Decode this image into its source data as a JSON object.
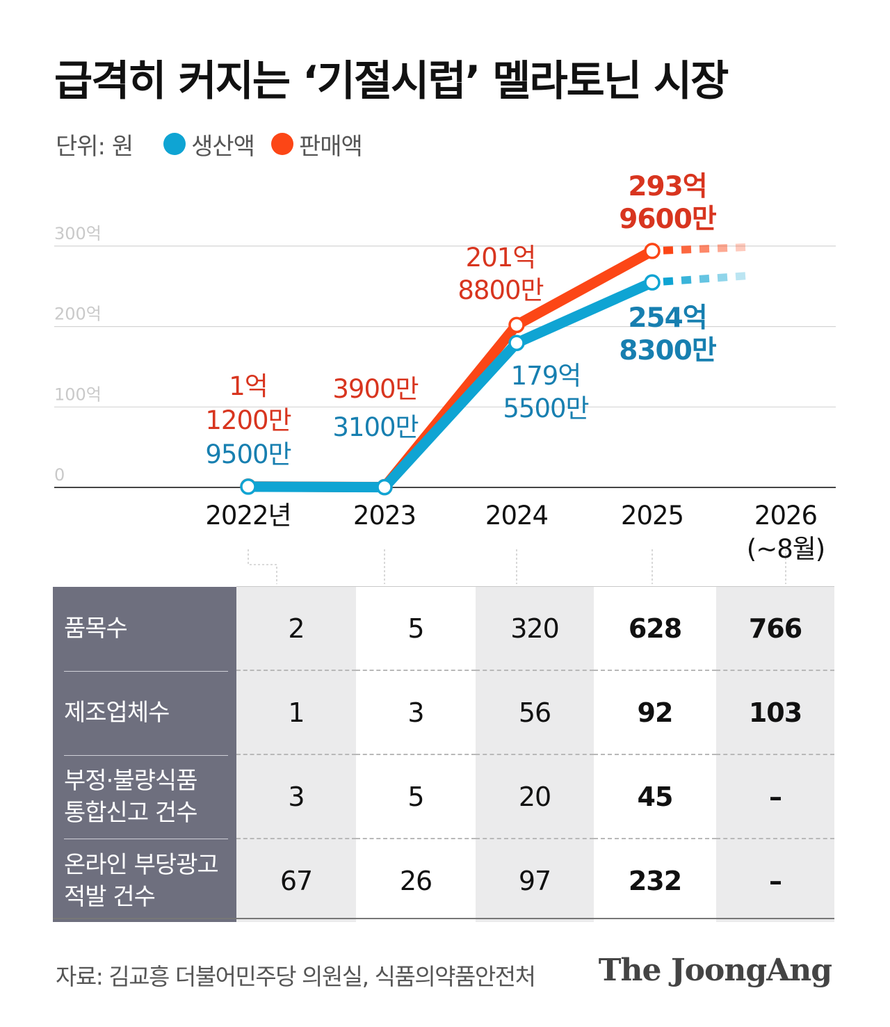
{
  "title": "급격히 커지는 ‘기절시럽’ 멜라토닌 시장",
  "legend": {
    "unit": "단위: 원",
    "items": [
      {
        "label": "생산액",
        "color": "#0fa4d3"
      },
      {
        "label": "판매액",
        "color": "#fc4616"
      }
    ]
  },
  "chart_data": {
    "type": "line",
    "x": [
      "2022년",
      "2023",
      "2024",
      "2025",
      "2026"
    ],
    "x_note": "(~8월)",
    "y_ticks": [
      "0",
      "100억",
      "200억",
      "300억"
    ],
    "ylim": [
      0,
      300
    ],
    "y_unit": "억 원",
    "series": [
      {
        "name": "생산액",
        "color": "#0fa4d3",
        "label_color": "#177fb0",
        "values": [
          0.95,
          0.31,
          179.55,
          254.83,
          null
        ],
        "labels": [
          [
            "9500만"
          ],
          [
            "3100만"
          ],
          [
            "179억",
            "5500만"
          ],
          [
            "254억",
            "8300만"
          ],
          []
        ]
      },
      {
        "name": "판매액",
        "color": "#fc4616",
        "label_color": "#d8351f",
        "values": [
          1.12,
          0.39,
          201.88,
          293.96,
          null
        ],
        "labels": [
          [
            "1억",
            "1200만"
          ],
          [
            "3900만"
          ],
          [
            "201억",
            "8800만"
          ],
          [
            "293억",
            "9600만"
          ],
          []
        ]
      }
    ]
  },
  "table": {
    "rows": [
      {
        "label": [
          "품목수"
        ],
        "values": [
          "2",
          "5",
          "320",
          "628",
          "766"
        ]
      },
      {
        "label": [
          "제조업체수"
        ],
        "values": [
          "1",
          "3",
          "56",
          "92",
          "103"
        ]
      },
      {
        "label": [
          "부정·불량식품",
          "통합신고 건수"
        ],
        "values": [
          "3",
          "5",
          "20",
          "45",
          "–"
        ]
      },
      {
        "label": [
          "온라인 부당광고",
          "적발 건수"
        ],
        "values": [
          "67",
          "26",
          "97",
          "232",
          "–"
        ]
      }
    ]
  },
  "source": "자료: 김교흥 더불어민주당 의원실, 식품의약품안전처",
  "brand": "The JoongAng"
}
